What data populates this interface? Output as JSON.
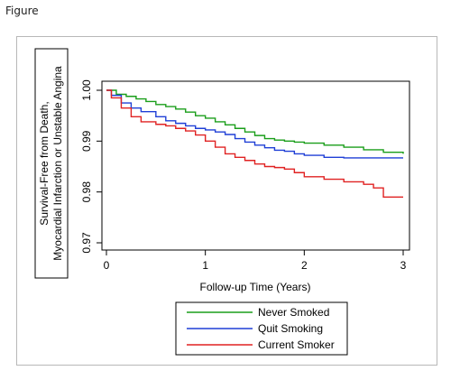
{
  "figure_label": "Figure",
  "chart_data": {
    "type": "line",
    "title": "",
    "xlabel": "Follow-up Time (Years)",
    "ylabel_lines": [
      "Survival-Free from Death,",
      "Myocardial Infarction or Unstable Angina"
    ],
    "xlim": [
      0,
      3
    ],
    "ylim": [
      0.97,
      1.0
    ],
    "x_ticks": [
      0,
      1,
      2,
      3
    ],
    "x_tick_labels": [
      "0",
      "1",
      "2",
      "3"
    ],
    "y_ticks": [
      0.97,
      0.98,
      0.99,
      1.0
    ],
    "y_tick_labels": [
      "0.97",
      "0.98",
      "0.99",
      "1.00"
    ],
    "grid": false,
    "legend_position": "bottom",
    "series": [
      {
        "name": "Never Smoked",
        "color": "#1a9e1a",
        "x": [
          0,
          0.1,
          0.2,
          0.3,
          0.4,
          0.5,
          0.6,
          0.7,
          0.8,
          0.9,
          1.0,
          1.1,
          1.2,
          1.3,
          1.4,
          1.5,
          1.6,
          1.7,
          1.8,
          1.9,
          2.0,
          2.2,
          2.4,
          2.6,
          2.8,
          3.0
        ],
        "y": [
          1.0,
          0.9992,
          0.9988,
          0.9983,
          0.9978,
          0.9972,
          0.9968,
          0.9963,
          0.9957,
          0.995,
          0.9945,
          0.9938,
          0.9932,
          0.9925,
          0.9918,
          0.9911,
          0.9905,
          0.9902,
          0.99,
          0.9898,
          0.9896,
          0.9892,
          0.9888,
          0.9883,
          0.9878,
          0.9875
        ]
      },
      {
        "name": "Quit Smoking",
        "color": "#1f3fd6",
        "x": [
          0,
          0.05,
          0.15,
          0.25,
          0.35,
          0.5,
          0.6,
          0.7,
          0.8,
          0.9,
          1.0,
          1.1,
          1.2,
          1.3,
          1.4,
          1.5,
          1.6,
          1.7,
          1.8,
          1.9,
          2.0,
          2.2,
          2.4,
          2.6,
          2.8,
          3.0
        ],
        "y": [
          1.0,
          0.999,
          0.9975,
          0.9965,
          0.9958,
          0.9948,
          0.994,
          0.9935,
          0.993,
          0.9925,
          0.9922,
          0.9918,
          0.9913,
          0.9905,
          0.9898,
          0.9892,
          0.9887,
          0.9882,
          0.988,
          0.9875,
          0.9872,
          0.9868,
          0.9867,
          0.9867,
          0.9867,
          0.9867
        ]
      },
      {
        "name": "Current Smoker",
        "color": "#e02222",
        "x": [
          0,
          0.05,
          0.15,
          0.25,
          0.35,
          0.5,
          0.6,
          0.7,
          0.8,
          0.9,
          1.0,
          1.1,
          1.2,
          1.3,
          1.4,
          1.5,
          1.6,
          1.7,
          1.8,
          1.9,
          2.0,
          2.2,
          2.4,
          2.6,
          2.7,
          2.8,
          3.0
        ],
        "y": [
          1.0,
          0.9985,
          0.9965,
          0.9948,
          0.9938,
          0.9933,
          0.993,
          0.9925,
          0.992,
          0.9912,
          0.99,
          0.9888,
          0.9875,
          0.9868,
          0.9862,
          0.9855,
          0.985,
          0.9848,
          0.9845,
          0.9838,
          0.983,
          0.9825,
          0.982,
          0.9815,
          0.9808,
          0.979,
          0.979
        ]
      }
    ]
  }
}
